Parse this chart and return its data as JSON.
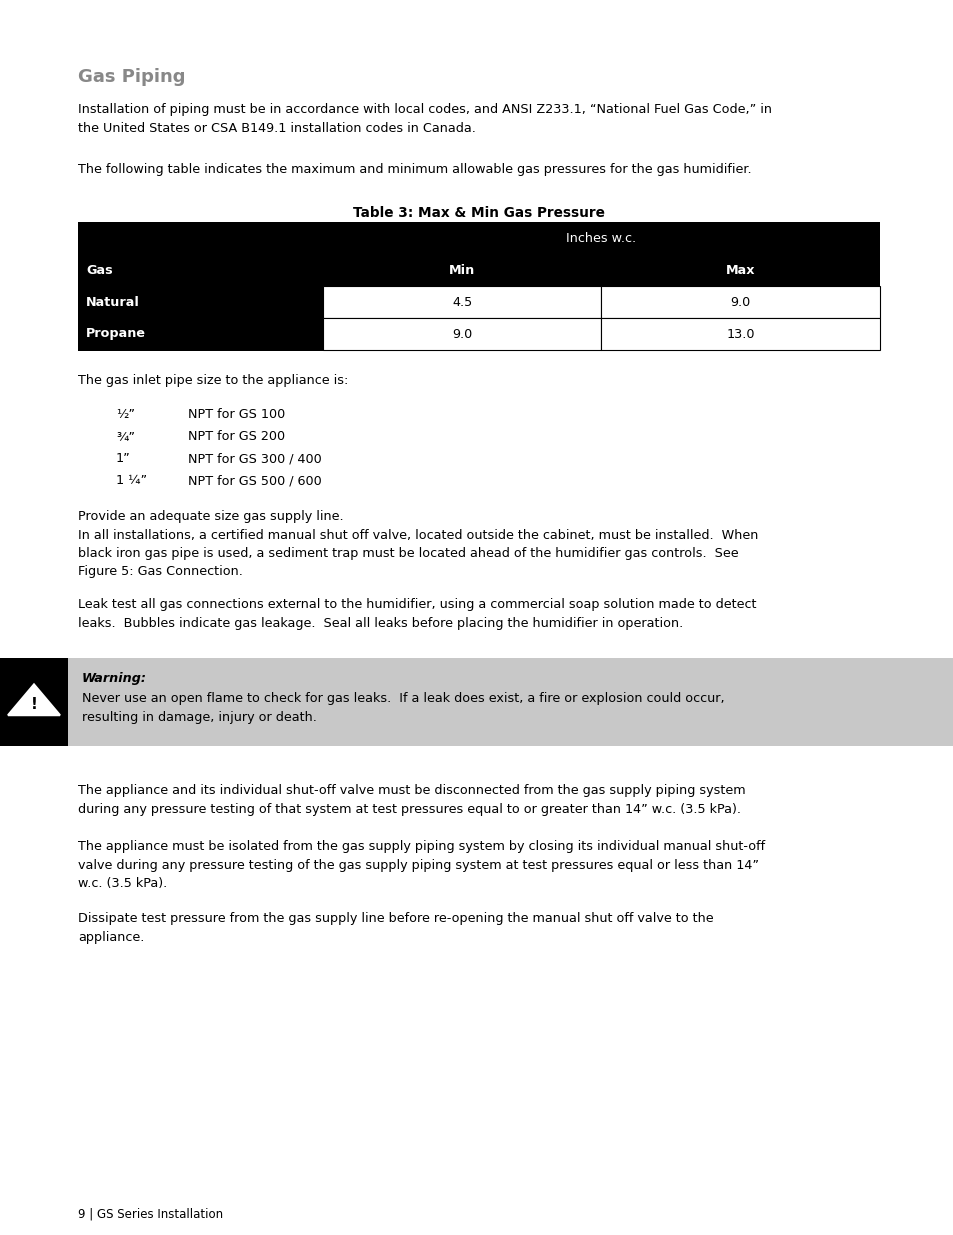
{
  "title": "Gas Piping",
  "title_color": "#888888",
  "bg_color": "#ffffff",
  "body_text_color": "#000000",
  "body_font_size": 9.2,
  "para1": "Installation of piping must be in accordance with local codes, and ANSI Z233.1, “National Fuel Gas Code,” in\nthe United States or CSA B149.1 installation codes in Canada.",
  "para2": "The following table indicates the maximum and minimum allowable gas pressures for the gas humidifier.",
  "table_title": "Table 3: Max & Min Gas Pressure",
  "table_header_row1": [
    "",
    "Inches w.c."
  ],
  "table_header_row2": [
    "Gas",
    "Min",
    "Max"
  ],
  "table_data": [
    [
      "Natural",
      "4.5",
      "9.0"
    ],
    [
      "Propane",
      "9.0",
      "13.0"
    ]
  ],
  "para3": "The gas inlet pipe size to the appliance is:",
  "pipe_sizes": [
    [
      "½”",
      "NPT for GS 100"
    ],
    [
      "¾”",
      "NPT for GS 200"
    ],
    [
      "1”",
      "NPT for GS 300 / 400"
    ],
    [
      "1 ¼”",
      "NPT for GS 500 / 600"
    ]
  ],
  "para4": "Provide an adequate size gas supply line.\nIn all installations, a certified manual shut off valve, located outside the cabinet, must be installed.  When\nblack iron gas pipe is used, a sediment trap must be located ahead of the humidifier gas controls.  See\nFigure 5: Gas Connection.",
  "para5": "Leak test all gas connections external to the humidifier, using a commercial soap solution made to detect\nleaks.  Bubbles indicate gas leakage.  Seal all leaks before placing the humidifier in operation.",
  "warning_bg": "#c8c8c8",
  "warning_label": "Warning:",
  "warning_text": "Never use an open flame to check for gas leaks.  If a leak does exist, a fire or explosion could occur,\nresulting in damage, injury or death.",
  "para6": "The appliance and its individual shut-off valve must be disconnected from the gas supply piping system\nduring any pressure testing of that system at test pressures equal to or greater than 14” w.c. (3.5 kPa).",
  "para7": "The appliance must be isolated from the gas supply piping system by closing its individual manual shut-off\nvalve during any pressure testing of the gas supply piping system at test pressures equal or less than 14”\nw.c. (3.5 kPa).",
  "para8": "Dissipate test pressure from the gas supply line before re-opening the manual shut off valve to the\nappliance.",
  "footer": "9 | GS Series Installation"
}
